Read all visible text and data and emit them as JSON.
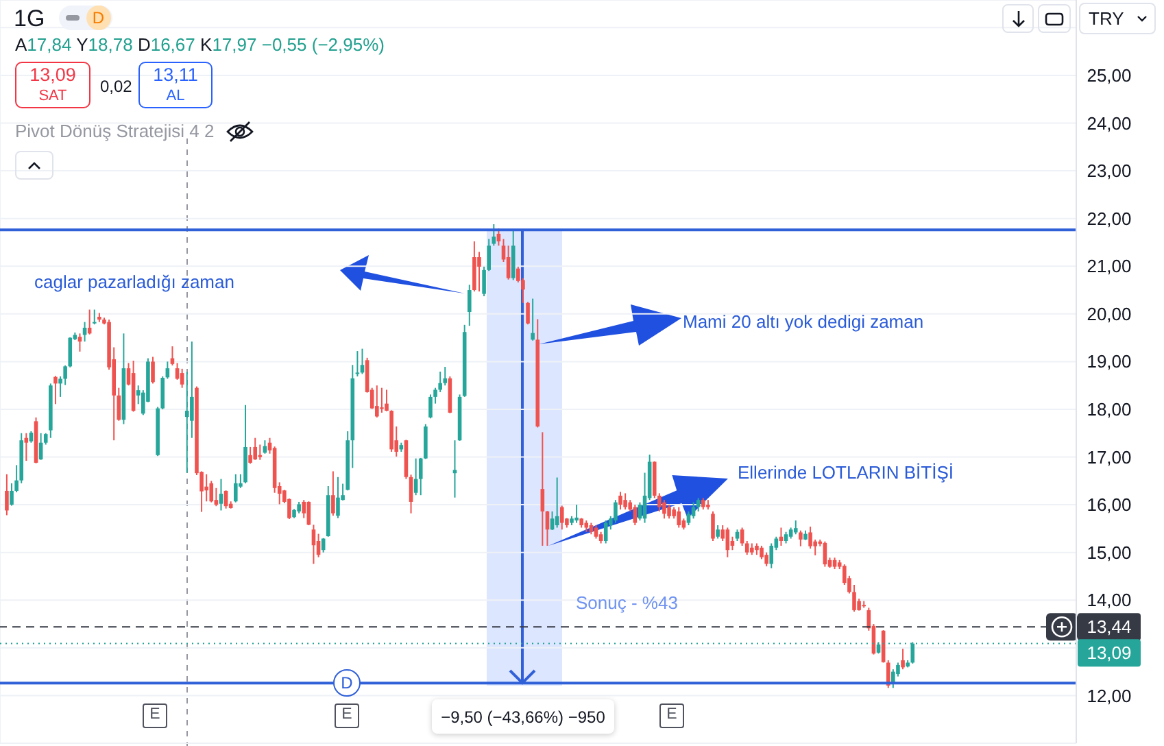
{
  "chart_data": {
    "type": "candlestick",
    "title": "1G",
    "categories": [
      null,
      null,
      null,
      null,
      null,
      null,
      null,
      null,
      null,
      null,
      null,
      null,
      null,
      null,
      null,
      null,
      null,
      null,
      null,
      null,
      null,
      null,
      null,
      null,
      null,
      null,
      null,
      null,
      null,
      null,
      null,
      null,
      null,
      null,
      null,
      null,
      null,
      null,
      null,
      null,
      null,
      null,
      null,
      null,
      null,
      null,
      null,
      null,
      null,
      null,
      null,
      null,
      null,
      null,
      null,
      null,
      null,
      null,
      null,
      null,
      null,
      null,
      null,
      null,
      null,
      null,
      null,
      null,
      null,
      null,
      null,
      null,
      null,
      null,
      null,
      null,
      null,
      null,
      null,
      null,
      null,
      null,
      null,
      null,
      null,
      null,
      null,
      null,
      null,
      null,
      null,
      null,
      null,
      null,
      null,
      null,
      null,
      null,
      null,
      null,
      null,
      null,
      null,
      null,
      null,
      null,
      null,
      null,
      null,
      null,
      null,
      null,
      null,
      null,
      null,
      null,
      null,
      null,
      null,
      null,
      null,
      null,
      null,
      null,
      null,
      null,
      null,
      null,
      null,
      null,
      null,
      null,
      null,
      null,
      null,
      null,
      null,
      null,
      null,
      null,
      null,
      null,
      null,
      null,
      null,
      null,
      null,
      null,
      null,
      null,
      null,
      null,
      null,
      null,
      null,
      null,
      null,
      null,
      null,
      null,
      null,
      null,
      null,
      null,
      null,
      null,
      null,
      null,
      null,
      null,
      null,
      null,
      null,
      null,
      null,
      null,
      null,
      null,
      null,
      null,
      null,
      null,
      null,
      null,
      null,
      null,
      null,
      null,
      null,
      null,
      null,
      null,
      null,
      null,
      null,
      null,
      null,
      null,
      null,
      null,
      null,
      null,
      null,
      null,
      null,
      null,
      null,
      null,
      null,
      null,
      null,
      null,
      null,
      null,
      null,
      null,
      null,
      null,
      null,
      null,
      null
    ],
    "ohlc": [
      null,
      [
        16.29,
        16.64,
        15.78,
        15.88
      ],
      [
        16.0,
        16.45,
        15.98,
        16.29
      ],
      [
        16.29,
        16.83,
        16.26,
        16.51
      ],
      [
        16.51,
        17.5,
        16.45,
        17.35
      ],
      [
        17.4,
        17.5,
        16.92,
        17.3
      ],
      [
        17.33,
        17.54,
        17.3,
        17.51
      ],
      [
        17.75,
        17.83,
        16.87,
        16.88
      ],
      [
        16.95,
        17.5,
        16.94,
        17.3
      ],
      [
        17.3,
        17.5,
        17.26,
        17.48
      ],
      [
        17.56,
        18.54,
        17.4,
        18.5
      ],
      [
        18.68,
        18.7,
        18.11,
        18.54
      ],
      [
        18.54,
        18.69,
        18.26,
        18.64
      ],
      [
        18.64,
        18.92,
        18.51,
        18.9
      ],
      [
        18.9,
        19.51,
        18.88,
        19.5
      ],
      [
        19.47,
        19.61,
        19.45,
        19.56
      ],
      [
        19.52,
        19.59,
        19.21,
        19.42
      ],
      [
        19.56,
        19.83,
        19.42,
        19.71
      ],
      [
        19.71,
        20.09,
        19.57,
        19.59
      ],
      [
        19.81,
        20.09,
        19.78,
        19.83
      ],
      [
        19.94,
        20.02,
        19.83,
        19.88
      ],
      [
        19.88,
        19.92,
        19.78,
        19.8
      ],
      [
        19.83,
        19.88,
        18.83,
        18.88
      ],
      [
        19.05,
        19.3,
        17.35,
        18.29
      ],
      [
        18.29,
        18.45,
        17.76,
        17.78
      ],
      [
        17.78,
        19.59,
        17.69,
        18.86
      ],
      [
        18.86,
        18.97,
        18.5,
        18.52
      ],
      [
        18.76,
        19.02,
        17.95,
        17.97
      ],
      [
        18.29,
        18.5,
        18.11,
        18.4
      ],
      [
        17.91,
        18.4,
        17.88,
        18.35
      ],
      [
        18.16,
        19.07,
        18.15,
        19.0
      ],
      [
        19.0,
        19.1,
        18.54,
        18.57
      ],
      [
        17.04,
        18.05,
        17.02,
        18.02
      ],
      [
        18.02,
        18.69,
        18.0,
        18.66
      ],
      [
        18.67,
        19.0,
        18.64,
        18.86
      ],
      [
        19.07,
        19.32,
        18.92,
        18.95
      ],
      [
        18.86,
        18.97,
        18.62,
        18.64
      ],
      [
        18.76,
        18.85,
        18.45,
        18.52
      ],
      [
        17.84,
        18.78,
        16.67,
        17.97
      ],
      [
        17.76,
        19.42,
        17.4,
        18.26
      ],
      [
        18.45,
        18.48,
        16.62,
        16.66
      ],
      [
        16.69,
        16.7,
        15.85,
        16.28
      ],
      [
        16.38,
        16.64,
        16.07,
        16.3
      ],
      [
        16.45,
        16.5,
        16.05,
        16.07
      ],
      [
        16.1,
        16.35,
        15.97,
        16.0
      ],
      [
        16.02,
        16.54,
        15.88,
        16.23
      ],
      [
        16.29,
        16.3,
        15.92,
        15.97
      ],
      [
        16.02,
        16.07,
        15.92,
        15.93
      ],
      [
        16.07,
        16.64,
        16.05,
        16.45
      ],
      [
        16.38,
        16.64,
        16.35,
        16.45
      ],
      [
        16.47,
        18.09,
        16.45,
        17.21
      ],
      [
        17.04,
        17.21,
        16.86,
        16.88
      ],
      [
        17.21,
        17.4,
        16.94,
        16.95
      ],
      [
        17.04,
        17.26,
        16.94,
        17.0
      ],
      [
        17.09,
        17.35,
        17.07,
        17.23
      ],
      [
        17.3,
        17.4,
        17.07,
        17.14
      ],
      [
        17.19,
        17.22,
        16.25,
        16.35
      ],
      [
        16.39,
        16.47,
        16.01,
        16.23
      ],
      [
        16.3,
        16.31,
        16.03,
        16.06
      ],
      [
        16.12,
        16.13,
        15.7,
        15.72
      ],
      [
        15.74,
        15.91,
        15.72,
        15.89
      ],
      [
        15.86,
        16.06,
        15.82,
        16.01
      ],
      [
        16.06,
        16.1,
        15.72,
        15.82
      ],
      [
        16.06,
        16.07,
        15.57,
        15.58
      ],
      [
        15.48,
        15.58,
        14.76,
        15.15
      ],
      [
        15.24,
        15.39,
        14.9,
        14.95
      ],
      [
        15.05,
        15.3,
        15.0,
        15.29
      ],
      [
        15.34,
        16.39,
        15.33,
        16.2
      ],
      [
        16.2,
        16.7,
        15.77,
        15.82
      ],
      [
        15.77,
        16.58,
        15.72,
        16.15
      ],
      [
        16.1,
        16.44,
        16.09,
        16.2
      ],
      [
        16.31,
        17.54,
        16.3,
        17.35
      ],
      [
        17.35,
        18.93,
        16.77,
        18.65
      ],
      [
        18.75,
        19.22,
        18.69,
        18.77
      ],
      [
        18.77,
        19.27,
        18.74,
        18.93
      ],
      [
        19.03,
        19.08,
        18.35,
        18.36
      ],
      [
        18.41,
        18.45,
        18.01,
        18.02
      ],
      [
        18.07,
        18.5,
        17.83,
        17.85
      ],
      [
        18.04,
        18.45,
        17.93,
        18.02
      ],
      [
        18.12,
        18.41,
        17.96,
        17.97
      ],
      [
        17.97,
        17.98,
        17.11,
        17.16
      ],
      [
        17.35,
        17.64,
        17.01,
        17.11
      ],
      [
        17.16,
        17.3,
        17.11,
        17.25
      ],
      [
        17.35,
        17.36,
        16.54,
        16.58
      ],
      [
        16.58,
        16.63,
        15.82,
        16.06
      ],
      [
        16.25,
        16.97,
        16.2,
        16.54
      ],
      [
        16.54,
        16.98,
        16.2,
        16.97
      ],
      [
        16.97,
        17.69,
        16.96,
        17.64
      ],
      [
        17.83,
        18.31,
        17.81,
        18.26
      ],
      [
        18.26,
        18.45,
        18.12,
        18.41
      ],
      [
        18.41,
        18.79,
        18.36,
        18.55
      ],
      [
        18.55,
        18.89,
        18.5,
        18.65
      ],
      [
        18.65,
        18.69,
        17.92,
        17.93
      ],
      [
        16.66,
        17.35,
        16.15,
        16.73
      ],
      [
        17.35,
        18.31,
        17.34,
        18.26
      ],
      [
        18.28,
        19.77,
        18.26,
        19.62
      ],
      [
        20.04,
        20.61,
        19.75,
        20.5
      ],
      [
        21.19,
        21.52,
        20.47,
        20.5
      ],
      [
        21.19,
        21.3,
        20.47,
        20.99
      ],
      [
        20.42,
        20.99,
        20.37,
        20.92
      ],
      [
        20.92,
        21.57,
        20.9,
        21.43
      ],
      [
        21.47,
        21.88,
        21.43,
        21.62
      ],
      [
        21.68,
        21.79,
        21.43,
        21.52
      ],
      [
        21.43,
        21.57,
        21.09,
        21.14
      ],
      [
        21.19,
        21.43,
        20.72,
        20.75
      ],
      [
        20.75,
        21.76,
        20.71,
        21.43
      ],
      [
        20.95,
        20.99,
        20.66,
        20.69
      ],
      [
        20.71,
        20.75,
        20.23,
        20.51
      ],
      [
        20.23,
        20.25,
        19.78,
        19.8
      ],
      [
        19.46,
        20.32,
        19.44,
        19.6
      ],
      [
        19.46,
        19.89,
        17.62,
        17.64
      ],
      [
        16.33,
        17.52,
        15.14,
        15.86
      ],
      [
        15.86,
        15.87,
        15.14,
        15.48
      ],
      [
        15.48,
        15.86,
        15.47,
        15.71
      ],
      [
        15.57,
        16.57,
        15.52,
        15.76
      ],
      [
        15.95,
        15.98,
        15.48,
        15.62
      ],
      [
        15.71,
        15.72,
        15.52,
        15.57
      ],
      [
        15.62,
        15.76,
        15.57,
        15.71
      ],
      [
        15.67,
        16.0,
        15.62,
        15.73
      ],
      [
        15.71,
        15.72,
        15.52,
        15.57
      ],
      [
        15.62,
        15.67,
        15.43,
        15.52
      ],
      [
        15.57,
        15.62,
        15.38,
        15.43
      ],
      [
        15.52,
        15.57,
        15.29,
        15.33
      ],
      [
        15.38,
        15.43,
        15.19,
        15.24
      ],
      [
        15.24,
        15.67,
        15.19,
        15.62
      ],
      [
        15.57,
        15.76,
        15.48,
        15.71
      ],
      [
        15.67,
        16.1,
        15.62,
        16.05
      ],
      [
        16.19,
        16.27,
        15.9,
        16.0
      ],
      [
        16.1,
        16.24,
        15.9,
        15.95
      ],
      [
        16.05,
        16.1,
        15.86,
        15.9
      ],
      [
        15.95,
        16.0,
        15.57,
        15.62
      ],
      [
        15.71,
        16.05,
        15.67,
        16.0
      ],
      [
        15.71,
        16.67,
        15.62,
        16.19
      ],
      [
        16.14,
        17.05,
        16.1,
        16.9
      ],
      [
        16.9,
        16.91,
        16.14,
        16.19
      ],
      [
        16.19,
        16.24,
        15.86,
        15.95
      ],
      [
        16.05,
        16.1,
        15.71,
        15.81
      ],
      [
        15.95,
        16.0,
        15.71,
        15.76
      ],
      [
        15.9,
        15.95,
        15.71,
        15.76
      ],
      [
        15.86,
        15.95,
        15.52,
        15.57
      ],
      [
        15.67,
        15.71,
        15.48,
        15.52
      ],
      [
        15.62,
        15.86,
        15.57,
        15.81
      ],
      [
        15.76,
        16.05,
        15.71,
        15.95
      ],
      [
        15.95,
        16.14,
        15.86,
        16.1
      ],
      [
        16.1,
        16.14,
        15.9,
        15.95
      ],
      [
        16.0,
        16.1,
        15.9,
        15.95
      ],
      [
        15.81,
        15.86,
        15.24,
        15.29
      ],
      [
        15.33,
        15.57,
        15.29,
        15.48
      ],
      [
        15.48,
        15.57,
        15.24,
        15.29
      ],
      [
        15.48,
        15.52,
        14.9,
        15.05
      ],
      [
        15.24,
        15.33,
        15.05,
        15.14
      ],
      [
        15.29,
        15.48,
        15.24,
        15.43
      ],
      [
        15.48,
        15.52,
        15.14,
        15.19
      ],
      [
        15.19,
        15.24,
        14.95,
        15.0
      ],
      [
        15.1,
        15.19,
        14.95,
        15.0
      ],
      [
        15.14,
        15.19,
        14.95,
        15.05
      ],
      [
        15.1,
        15.14,
        14.86,
        14.9
      ],
      [
        14.95,
        15.0,
        14.71,
        14.76
      ],
      [
        14.76,
        15.19,
        14.67,
        15.14
      ],
      [
        15.1,
        15.33,
        15.05,
        15.29
      ],
      [
        15.33,
        15.52,
        15.14,
        15.24
      ],
      [
        15.24,
        15.43,
        15.19,
        15.38
      ],
      [
        15.33,
        15.52,
        15.29,
        15.48
      ],
      [
        15.42,
        15.67,
        15.38,
        15.51
      ],
      [
        15.42,
        15.46,
        15.13,
        15.27
      ],
      [
        15.27,
        15.46,
        15.26,
        15.39
      ],
      [
        15.42,
        15.54,
        15.08,
        15.13
      ],
      [
        15.23,
        15.27,
        14.94,
        15.13
      ],
      [
        15.23,
        15.27,
        15.13,
        15.18
      ],
      [
        15.2,
        15.23,
        14.7,
        14.75
      ],
      [
        14.84,
        14.89,
        14.68,
        14.7
      ],
      [
        14.84,
        14.89,
        14.65,
        14.7
      ],
      [
        14.79,
        14.84,
        14.65,
        14.7
      ],
      [
        14.72,
        14.75,
        14.32,
        14.36
      ],
      [
        14.46,
        14.51,
        14.14,
        14.17
      ],
      [
        14.17,
        14.32,
        13.76,
        13.79
      ],
      [
        13.98,
        14.03,
        13.78,
        13.79
      ],
      [
        13.9,
        13.98,
        13.84,
        13.88
      ],
      [
        13.79,
        13.84,
        13.36,
        13.41
      ],
      [
        13.46,
        13.5,
        12.86,
        12.88
      ],
      [
        12.9,
        13.12,
        12.88,
        13.07
      ],
      [
        13.36,
        13.37,
        12.69,
        12.7
      ],
      [
        12.69,
        12.74,
        12.16,
        12.21
      ],
      [
        12.26,
        12.55,
        12.16,
        12.5
      ],
      [
        12.45,
        12.69,
        12.4,
        12.64
      ],
      [
        12.74,
        12.98,
        12.55,
        12.59
      ],
      [
        12.61,
        12.74,
        12.59,
        12.69
      ],
      [
        12.69,
        13.12,
        12.67,
        13.09
      ],
      null,
      null,
      null,
      null,
      null,
      null,
      null,
      null,
      null,
      null,
      null,
      null,
      null,
      null,
      null,
      null,
      null,
      null,
      null,
      null,
      null,
      null,
      null,
      null,
      null,
      null,
      null,
      null,
      null,
      null,
      null,
      null,
      null
    ],
    "colors": [
      null,
      "#ef5350",
      "#26a69a",
      "#26a69a",
      "#26a69a",
      "#ef5350",
      "#26a69a",
      "#ef5350",
      "#26a69a",
      "#26a69a",
      "#26a69a",
      "#ef5350",
      "#26a69a",
      "#26a69a",
      "#26a69a",
      "#26a69a",
      "#ef5350",
      "#26a69a",
      "#ef5350",
      "#26a69a",
      "#ef5350",
      "#ef5350",
      "#ef5350",
      "#ef5350",
      "#ef5350",
      "#26a69a",
      "#ef5350",
      "#ef5350",
      "#26a69a",
      "#26a69a",
      "#26a69a",
      "#ef5350",
      "#26a69a",
      "#26a69a",
      "#26a69a",
      "#ef5350",
      "#ef5350",
      "#ef5350",
      "#26a69a",
      "#26a69a",
      "#ef5350",
      "#ef5350",
      "#ef5350",
      "#ef5350",
      "#ef5350",
      "#26a69a",
      "#ef5350",
      "#ef5350",
      "#26a69a",
      "#26a69a",
      "#26a69a",
      "#ef5350",
      "#ef5350",
      "#ef5350",
      "#26a69a",
      "#ef5350",
      "#ef5350",
      "#ef5350",
      "#ef5350",
      "#ef5350",
      "#26a69a",
      "#26a69a",
      "#ef5350",
      "#ef5350",
      "#ef5350",
      "#ef5350",
      "#26a69a",
      "#26a69a",
      "#ef5350",
      "#26a69a",
      "#26a69a",
      "#26a69a",
      "#26a69a",
      "#26a69a",
      "#26a69a",
      "#ef5350",
      "#ef5350",
      "#ef5350",
      "#ef5350",
      "#ef5350",
      "#ef5350",
      "#ef5350",
      "#26a69a",
      "#ef5350",
      "#ef5350",
      "#26a69a",
      "#26a69a",
      "#26a69a",
      "#26a69a",
      "#26a69a",
      "#26a69a",
      "#26a69a",
      "#ef5350",
      "#26a69a",
      "#26a69a",
      "#26a69a",
      "#26a69a",
      "#ef5350",
      "#ef5350",
      "#26a69a",
      "#26a69a",
      "#26a69a",
      "#ef5350",
      "#ef5350",
      "#ef5350",
      "#26a69a",
      "#ef5350",
      "#ef5350",
      "#ef5350",
      "#26a69a",
      "#ef5350",
      "#ef5350",
      "#ef5350",
      "#26a69a",
      "#26a69a",
      "#ef5350",
      "#ef5350",
      "#26a69a",
      "#26a69a",
      "#ef5350",
      "#ef5350",
      "#ef5350",
      "#ef5350",
      "#ef5350",
      "#26a69a",
      "#26a69a",
      "#26a69a",
      "#ef5350",
      "#ef5350",
      "#ef5350",
      "#ef5350",
      "#26a69a",
      "#26a69a",
      "#26a69a",
      "#ef5350",
      "#ef5350",
      "#ef5350",
      "#ef5350",
      "#ef5350",
      "#ef5350",
      "#ef5350",
      "#26a69a",
      "#26a69a",
      "#26a69a",
      "#ef5350",
      "#ef5350",
      "#ef5350",
      "#26a69a",
      "#ef5350",
      "#ef5350",
      "#ef5350",
      "#26a69a",
      "#ef5350",
      "#ef5350",
      "#ef5350",
      "#ef5350",
      "#ef5350",
      "#ef5350",
      "#26a69a",
      "#26a69a",
      "#ef5350",
      "#26a69a",
      "#26a69a",
      "#26a69a",
      "#ef5350",
      "#26a69a",
      "#ef5350",
      "#ef5350",
      "#ef5350",
      "#ef5350",
      "#ef5350",
      "#ef5350",
      "#ef5350",
      "#ef5350",
      "#ef5350",
      "#ef5350",
      "#ef5350",
      "#ef5350",
      "#ef5350",
      "#ef5350",
      "#26a69a",
      "#ef5350",
      "#ef5350",
      "#26a69a",
      "#26a69a",
      "#ef5350",
      "#26a69a",
      "#26a69a",
      null,
      null,
      null,
      null,
      null,
      null,
      null,
      null,
      null,
      null,
      null,
      null,
      null,
      null,
      null,
      null,
      null,
      null,
      null,
      null,
      null,
      null,
      null,
      null,
      null,
      null,
      null,
      null,
      null,
      null,
      null,
      null,
      null
    ],
    "ylim": [
      11,
      26.58
    ],
    "yticks": [
      {
        "value": 12,
        "label": "12,00"
      },
      {
        "value": 13,
        "label": null
      },
      {
        "value": 14,
        "label": "14,00"
      },
      {
        "value": 15,
        "label": "15,00"
      },
      {
        "value": 16,
        "label": "16,00"
      },
      {
        "value": 17,
        "label": "17,00"
      },
      {
        "value": 18,
        "label": "18,00"
      },
      {
        "value": 19,
        "label": "19,00"
      },
      {
        "value": 20,
        "label": "20,00"
      },
      {
        "value": 21,
        "label": "21,00"
      },
      {
        "value": 22,
        "label": "22,00"
      },
      {
        "value": 23,
        "label": "23,00"
      },
      {
        "value": 24,
        "label": "24,00"
      },
      {
        "value": 25,
        "label": "25,00"
      },
      {
        "value": 26,
        "label": null
      }
    ],
    "grid": true,
    "tick_labels": "y",
    "ref_lines": [
      {
        "axis": "y",
        "value": 21.76,
        "color": "#3060d8",
        "line_style": "solid"
      },
      {
        "axis": "y",
        "value": 12.26,
        "color": "#3060d8",
        "line_style": "solid"
      },
      {
        "axis": "y",
        "value": 13.44,
        "label": "13,44",
        "color": "#363a45",
        "line_style": "dashed"
      },
      {
        "axis": "y",
        "value": 13.09,
        "label": "13,09",
        "color": "#26a69a",
        "line_style": "dotted"
      }
    ],
    "annotations": [
      "A17,84 Y18,78 D16,67 K17,97 −0,55 (−2,95%)",
      "13,09",
      "SAT",
      "0,02",
      "13,11",
      "AL",
      "Pivot Dönüş Stratejisi 4 2",
      "TRY",
      "D",
      "caglar pazarladığı zaman",
      "Mami 20 altı yok dedigi zaman",
      "Ellerinde LOTLARIN BİTİŞİ",
      "Sonuç - %43",
      "−9,50 (−43,66%) −950",
      "D",
      "E",
      "E",
      "E"
    ]
  }
}
